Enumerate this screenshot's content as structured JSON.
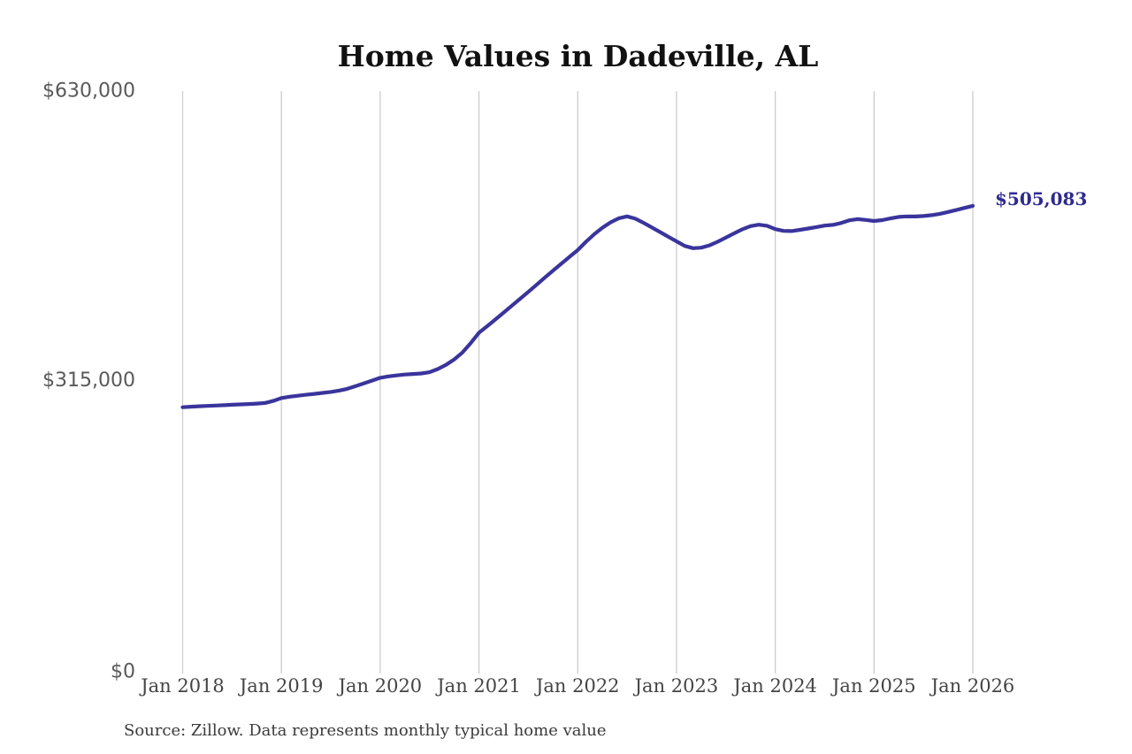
{
  "title": "Home Values in Dadeville, AL",
  "end_label": "$505,083",
  "source_note": "Source: Zillow. Data represents monthly typical home value",
  "colors": {
    "line": "#3a349c",
    "end_label": "#2e2a8f",
    "gridline": "#cccccc",
    "y_tick_text": "#595959",
    "x_tick_text": "#444444",
    "title_text": "#111111",
    "source_text": "#3a3a3a",
    "background": "#ffffff"
  },
  "chart_data": {
    "type": "line",
    "title": "Home Values in Dadeville, AL",
    "xlabel": "",
    "ylabel": "",
    "unit": "USD",
    "frequency": "monthly",
    "x_start": "Jan 2018",
    "x_end": "Jan 2026",
    "ylim": [
      0,
      630000
    ],
    "grid": "vertical-only",
    "legend": "none",
    "x_ticks": [
      "Jan 2018",
      "Jan 2019",
      "Jan 2020",
      "Jan 2021",
      "Jan 2022",
      "Jan 2023",
      "Jan 2024",
      "Jan 2025",
      "Jan 2026"
    ],
    "y_ticks": [
      {
        "label": "$0",
        "value": 0
      },
      {
        "label": "$315,000",
        "value": 315000
      },
      {
        "label": "$630,000",
        "value": 630000
      }
    ],
    "last_point": {
      "x": "Jan 2026",
      "value": 505083,
      "label": "$505,083"
    },
    "series": [
      {
        "name": "Monthly typical home value",
        "months_per_point": 1,
        "values": [
          286000,
          286500,
          287000,
          287400,
          287800,
          288200,
          288600,
          289000,
          289400,
          289900,
          290600,
          292800,
          296000,
          297400,
          298500,
          299500,
          300500,
          301500,
          302600,
          304000,
          306000,
          308800,
          311800,
          314900,
          318000,
          319500,
          320600,
          321500,
          322100,
          322700,
          324000,
          327500,
          332000,
          338000,
          345500,
          355800,
          367000,
          374200,
          381500,
          389000,
          396500,
          404000,
          411500,
          419200,
          427000,
          434600,
          442100,
          449600,
          457000,
          466000,
          474200,
          481300,
          487200,
          491600,
          493600,
          491100,
          486600,
          481600,
          476600,
          471500,
          466500,
          461500,
          459000,
          459600,
          462100,
          466000,
          470500,
          475100,
          479600,
          483000,
          484600,
          483400,
          479800,
          477800,
          477600,
          479000,
          480400,
          482000,
          483600,
          484400,
          486400,
          489400,
          490600,
          489800,
          488600,
          489600,
          491400,
          493000,
          493600,
          493500,
          494000,
          495000,
          496400,
          498400,
          500500,
          502800,
          505083
        ]
      }
    ]
  }
}
